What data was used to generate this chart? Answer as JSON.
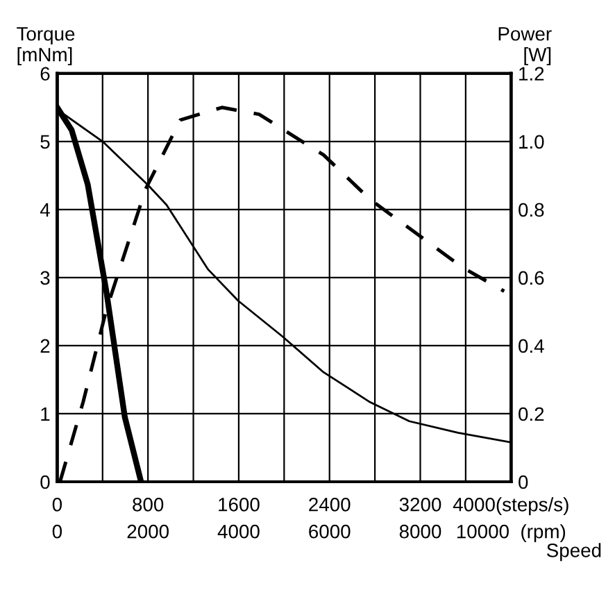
{
  "chart_data": {
    "type": "line",
    "ylabel": "Torque\n[mNm]",
    "y2label": "Power\n[W]",
    "xlabel": "Speed",
    "xlim": [
      0,
      4000
    ],
    "ylim": [
      0,
      6
    ],
    "y2lim": [
      0,
      1.2
    ],
    "xticks": [
      0,
      {
        "value": 400,
        "label": null
      },
      800,
      {
        "value": 1200,
        "label": null
      },
      1600,
      {
        "value": 2000,
        "label": null
      },
      2400,
      {
        "value": 2800,
        "label": null
      },
      3200,
      {
        "value": 3600,
        "label": null
      },
      {
        "value": 4000,
        "label": "4000(steps/s)"
      }
    ],
    "x2lim": [
      0,
      10000
    ],
    "x2ticks": [
      0,
      2000,
      4000,
      6000,
      8000,
      {
        "value": 10000,
        "label": "10000  (rpm)"
      }
    ],
    "yticks": [
      0,
      1,
      2,
      3,
      4,
      5,
      6
    ],
    "y2ticks": [
      0,
      0.2,
      0.4,
      0.6,
      0.8,
      {
        "value": 1.0,
        "label": "1.0"
      },
      1.2
    ],
    "grid": true,
    "series": [
      {
        "color": "#000000",
        "line_style": "solid",
        "x": [
          0,
          400,
          800,
          963,
          1330,
          1595,
          1982,
          2347,
          2757,
          3103,
          3532,
          4000
        ],
        "values": [
          5.47,
          5.0,
          4.36,
          4.07,
          3.12,
          2.66,
          2.14,
          1.61,
          1.17,
          0.89,
          0.72,
          0.58
        ]
      },
      {
        "color": "#000000",
        "line_style": "solid",
        "x": [
          0,
          127,
          269,
          433,
          596,
          739
        ],
        "values": [
          5.5,
          5.17,
          4.37,
          2.8,
          0.95,
          0
        ]
      },
      {
        "color": "#000000",
        "line_style": "dashed",
        "axis": "y2",
        "x": [
          25,
          229,
          433,
          779,
          1085,
          1452,
          1779,
          2349,
          2757,
          3572,
          3939
        ],
        "values": [
          0,
          0.235,
          0.505,
          0.86,
          1.063,
          1.1,
          1.08,
          0.96,
          0.83,
          0.63,
          0.56
        ]
      }
    ]
  }
}
